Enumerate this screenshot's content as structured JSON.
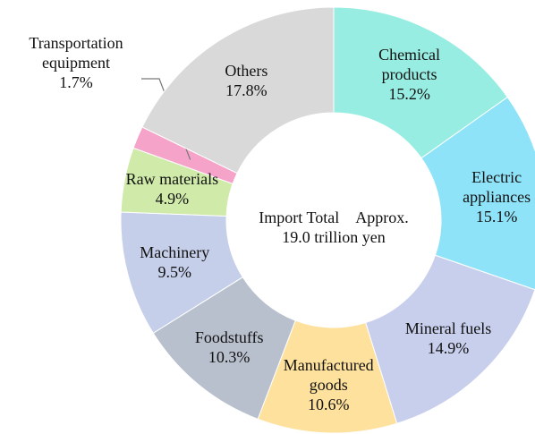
{
  "chart_data": {
    "type": "donut",
    "center_text": [
      "Import Total　Approx.",
      "19.0 trillion yen"
    ],
    "categories": [
      "Chemical products",
      "Electric appliances",
      "Mineral fuels",
      "Manufactured goods",
      "Foodstuffs",
      "Machinery",
      "Raw materials",
      "Transportation equipment",
      "Others"
    ],
    "values": [
      15.2,
      15.1,
      14.9,
      10.6,
      10.3,
      9.5,
      4.9,
      1.7,
      17.8
    ],
    "value_labels": [
      "15.2%",
      "15.1%",
      "14.9%",
      "10.6%",
      "10.3%",
      "9.5%",
      "4.9%",
      "1.7%",
      "17.8%"
    ],
    "colors": [
      "#97ede2",
      "#8fe3f8",
      "#c8cfec",
      "#fde19d",
      "#b9c0cd",
      "#c6cfea",
      "#cfeaa9",
      "#f6a3ca",
      "#d9d9d9"
    ]
  }
}
